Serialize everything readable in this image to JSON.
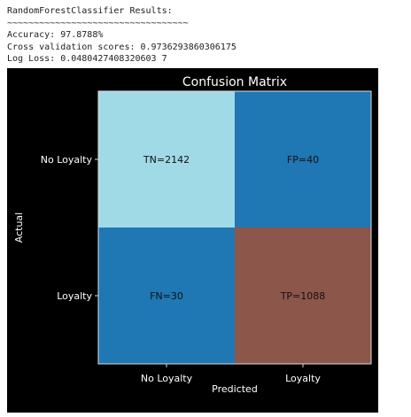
{
  "output": {
    "header": "RandomForestClassifier Results:",
    "separator": "~~~~~~~~~~~~~~~~~~~~~~~~~~~~~~~~~~",
    "accuracy": "Accuracy: 97.8788%",
    "cv": "Cross validation scores: 0.9736293860306175",
    "logloss": "Log Loss: 0.0480427408320603 7"
  },
  "chart_data": {
    "type": "heatmap",
    "title": "Confusion Matrix",
    "xlabel": "Predicted",
    "ylabel": "Actual",
    "x_tick_labels": [
      "No Loyalty",
      "Loyalty"
    ],
    "y_tick_labels": [
      "No Loyalty",
      "Loyalty"
    ],
    "cells": [
      [
        {
          "label": "TN=2142",
          "value": 2142
        },
        {
          "label": "FP=40",
          "value": 40
        }
      ],
      [
        {
          "label": "FN=30",
          "value": 30
        },
        {
          "label": "TP=1088",
          "value": 1088
        }
      ]
    ],
    "cell_colors": [
      [
        "#a0dae6",
        "#1f77b4"
      ],
      [
        "#1f77b4",
        "#8c564b"
      ]
    ]
  }
}
